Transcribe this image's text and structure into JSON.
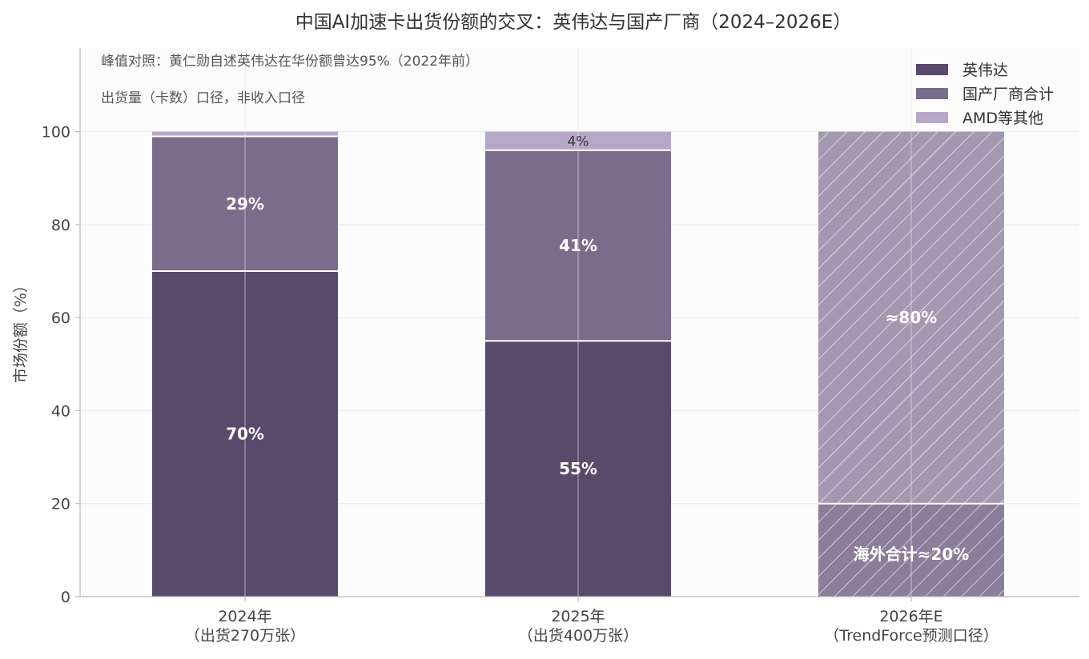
{
  "chart_data": {
    "type": "bar",
    "stacked": true,
    "title": "中国AI加速卡出货份额的交叉：英伟达与国产厂商（2024–2026E）",
    "ylabel": "市场份额（%）",
    "xlabel": "",
    "ylim": [
      0,
      118
    ],
    "yticks": [
      0,
      20,
      40,
      60,
      80,
      100
    ],
    "grid": true,
    "legend_position": "top-right",
    "annotations": [
      "峰值对照：黄仁勋自述英伟达在华份额曾达95%（2022年前）",
      "出货量（卡数）口径，非收入口径"
    ],
    "categories": [
      [
        "2024年",
        "（出货270万张）"
      ],
      [
        "2025年",
        "（出货400万张）"
      ],
      [
        "2026年E",
        "（TrendForce预测口径）"
      ]
    ],
    "series": [
      {
        "name": "英伟达",
        "color": "#594a6c",
        "values": [
          70,
          55,
          null
        ],
        "labels": [
          "70%",
          "55%",
          ""
        ]
      },
      {
        "name": "国产厂商合计",
        "color": "#7b6c8b",
        "values": [
          29,
          41,
          null
        ],
        "labels": [
          "29%",
          "41%",
          ""
        ]
      },
      {
        "name": "AMD等其他",
        "color": "#b8a8c8",
        "values": [
          1,
          4,
          null
        ],
        "labels": [
          "",
          "4%",
          ""
        ]
      }
    ],
    "forecast": {
      "category_index": 2,
      "hatched": true,
      "segments": [
        {
          "value": 20,
          "label": "海外合计≈20%",
          "color": "#8a7e98"
        },
        {
          "value": 80,
          "label": "≈80%",
          "color": "#a398b0"
        }
      ]
    }
  }
}
